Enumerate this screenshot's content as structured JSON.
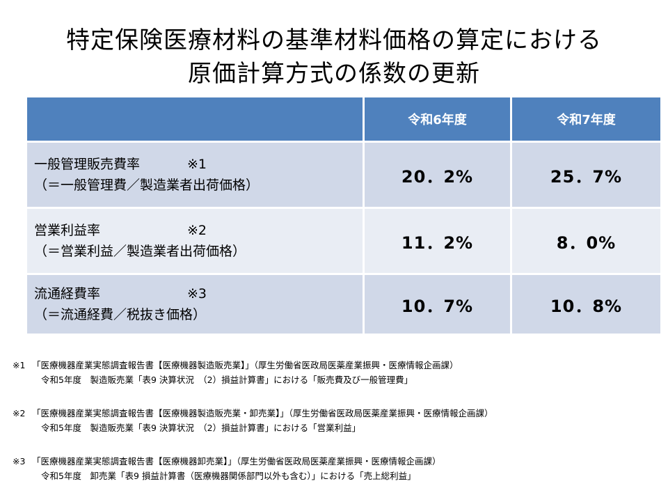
{
  "title": {
    "line1": "特定保険医療材料の基準材料価格の算定における",
    "line2": "原価計算方式の係数の更新"
  },
  "table": {
    "headers": [
      "",
      "令和6年度",
      "令和7年度"
    ],
    "rows": [
      {
        "name": "一般管理販売費率",
        "note": "※1",
        "formula": "（＝一般管理費／製造業者出荷価格）",
        "r6": "20．2%",
        "r7": "25．7%"
      },
      {
        "name": "営業利益率",
        "note": "※2",
        "formula": "（＝営業利益／製造業者出荷価格）",
        "r6": "11．2%",
        "r7": "8．0%"
      },
      {
        "name": "流通経費率",
        "note": "※3",
        "formula": "（＝流通経費／税抜き価格）",
        "r6": "10．7%",
        "r7": "10．8%"
      }
    ]
  },
  "footnotes": [
    {
      "mark": "※1",
      "line1": "「医療機器産業実態調査報告書【医療機器製造販売業】」（厚生労働省医政局医薬産業振興・医療情報企画課）",
      "line2": "令和5年度　製造販売業「表9 決算状況　（2）損益計算書」における「販売費及び一般管理費」"
    },
    {
      "mark": "※2",
      "line1": "「医療機器産業実態調査報告書【医療機器製造販売業・卸売業】」（厚生労働省医政局医薬産業振興・医療情報企画課）",
      "line2": "令和5年度　製造販売業「表9 決算状況　（2）損益計算書」における「営業利益」"
    },
    {
      "mark": "※3",
      "line1": "「医療機器産業実態調査報告書【医療機器卸売業】」（厚生労働省医政局医薬産業振興・医療情報企画課）",
      "line2": "令和5年度　卸売業「表9 損益計算書（医療機器関係部門以外も含む）」における「売上総利益」"
    }
  ]
}
